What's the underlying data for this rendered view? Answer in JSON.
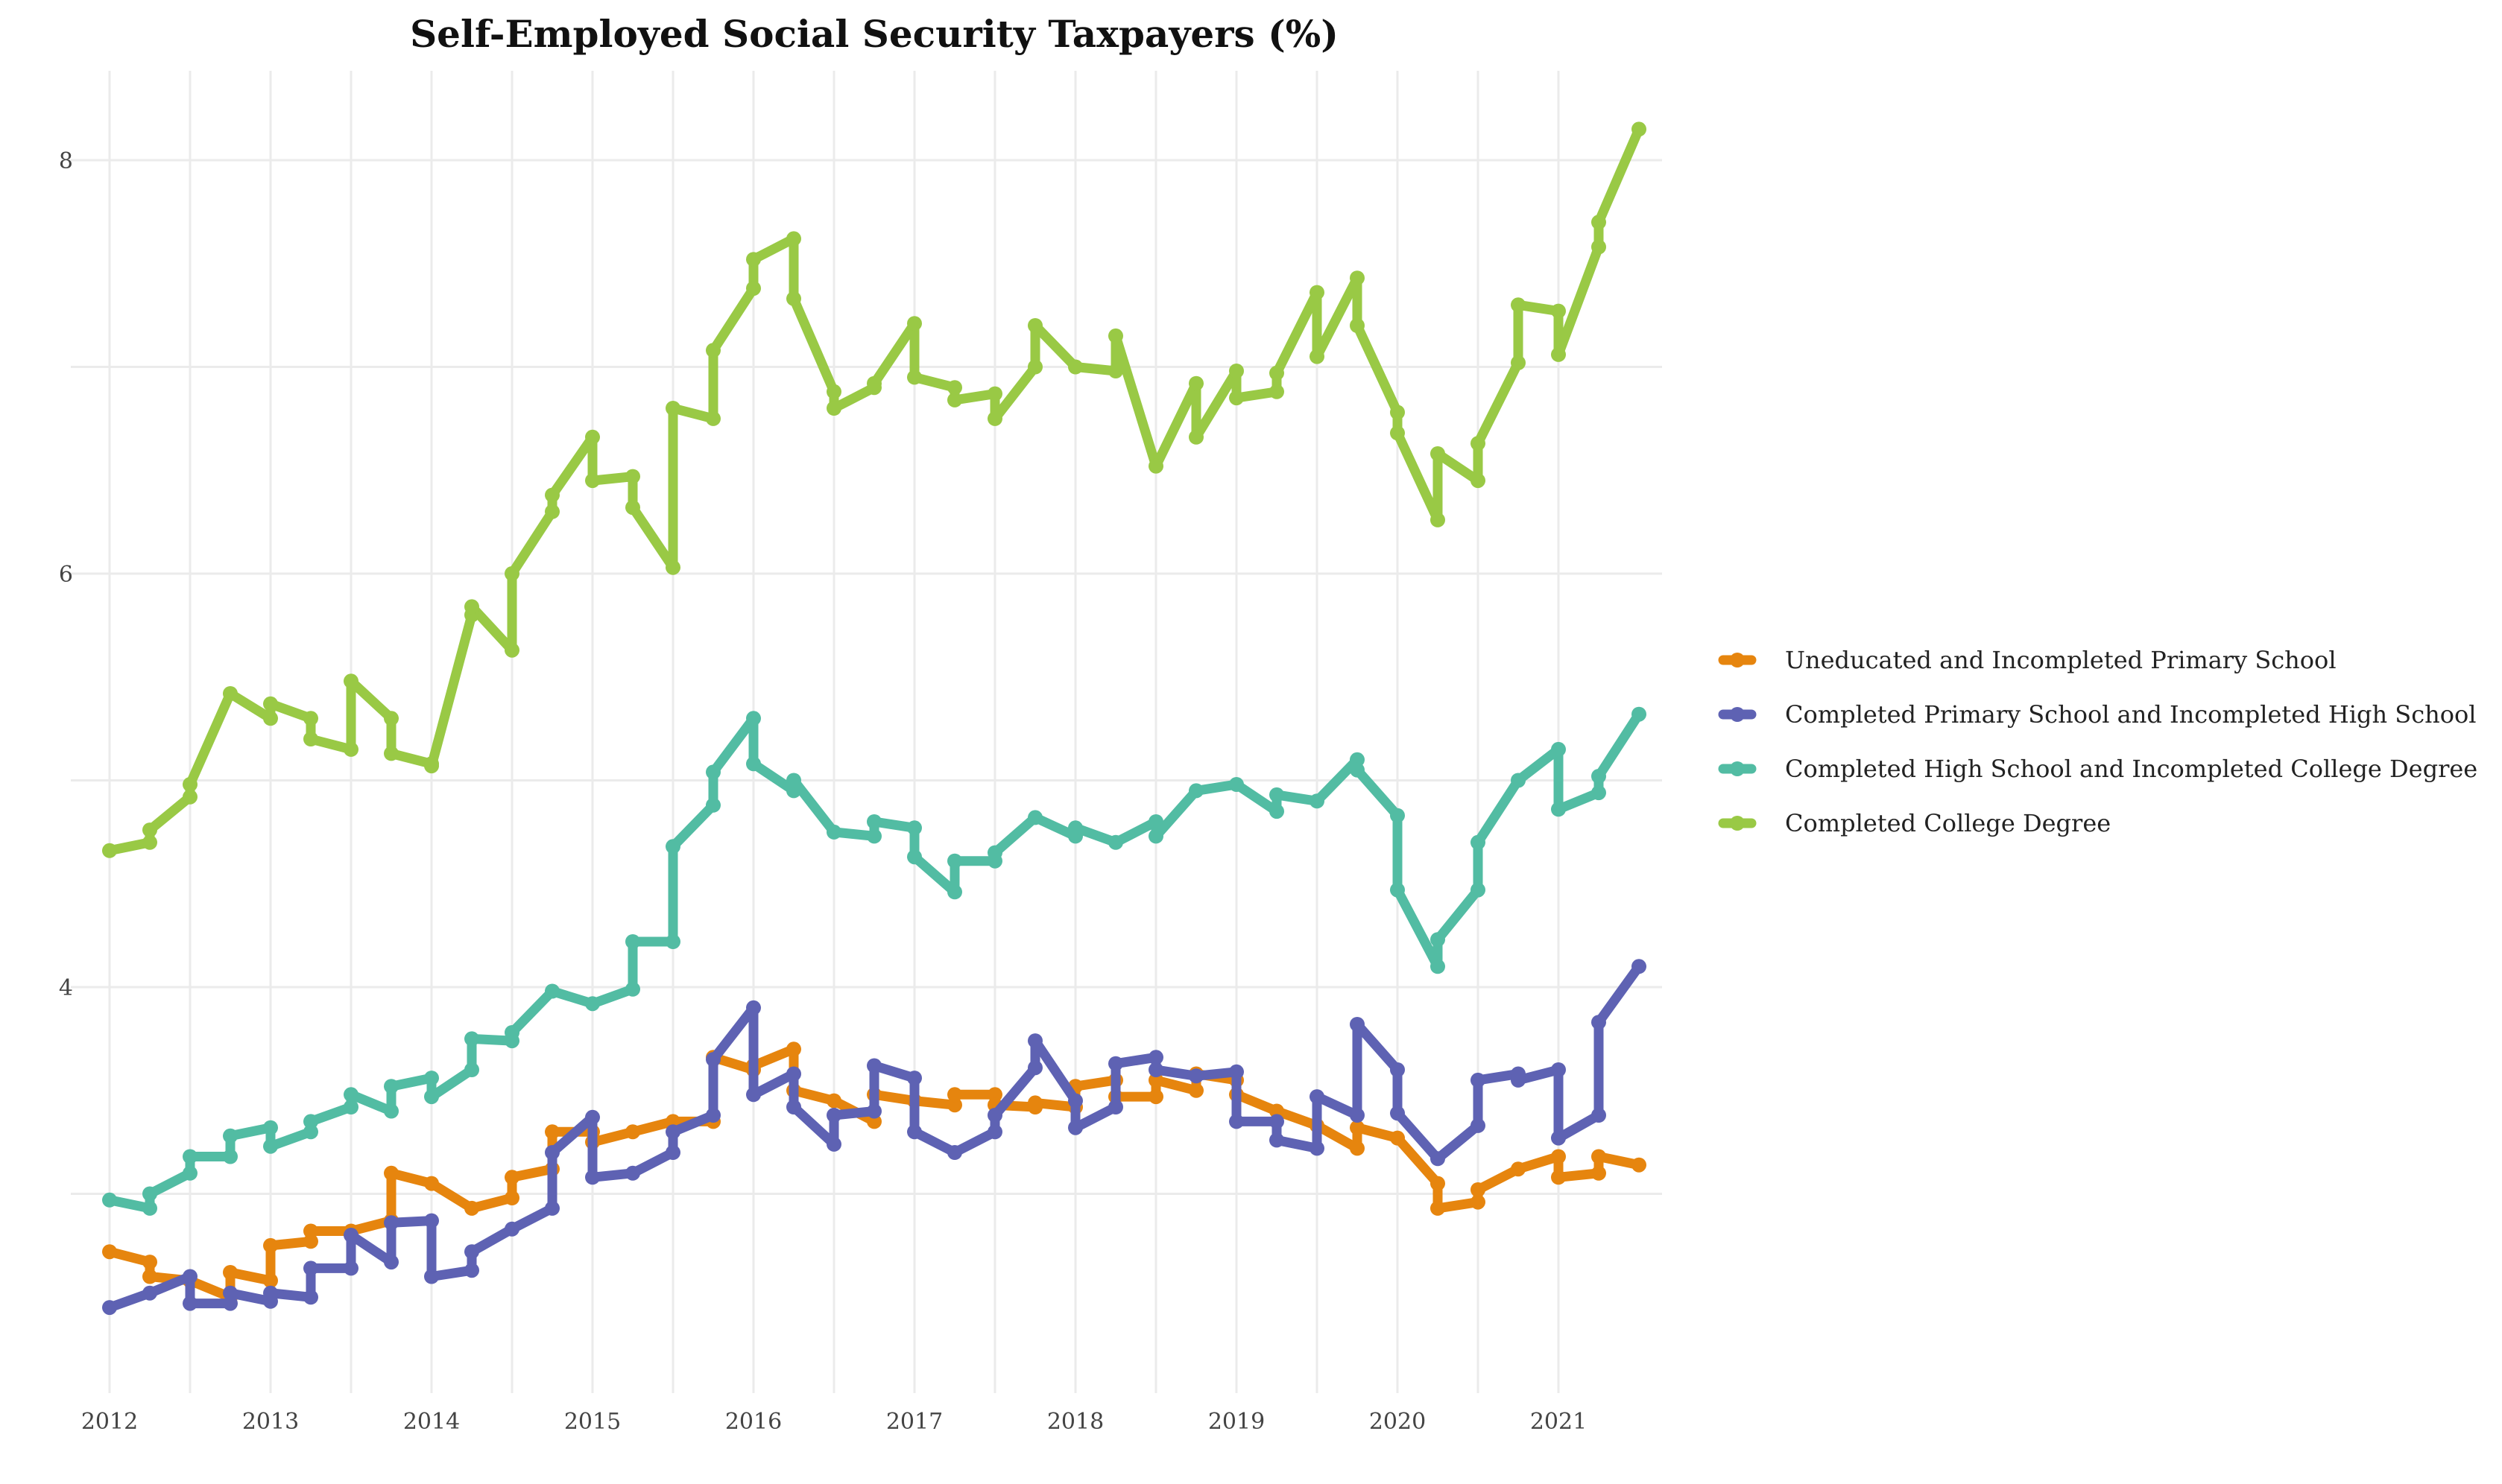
{
  "chart_data": {
    "type": "line",
    "title": "Self-Employed Social Security Taxpayers (%)",
    "xlabel": "",
    "ylabel": "",
    "xlim": [
      2012,
      2021.75
    ],
    "ylim": [
      2.7,
      8.45
    ],
    "x_ticks": [
      2012,
      2013,
      2014,
      2015,
      2016,
      2017,
      2018,
      2019,
      2020,
      2021
    ],
    "y_ticks": [
      4,
      6,
      8
    ],
    "grid": true,
    "legend_position": "right",
    "series": [
      {
        "name": "Uneducated and Incompleted Primary School",
        "color": "#E6850E",
        "points": [
          [
            2012.0,
            2.72
          ],
          [
            2012.25,
            2.67
          ],
          [
            2012.25,
            2.6
          ],
          [
            2012.5,
            2.58
          ],
          [
            2012.75,
            2.5
          ],
          [
            2012.75,
            2.62
          ],
          [
            2013.0,
            2.58
          ],
          [
            2013.0,
            2.75
          ],
          [
            2013.25,
            2.77
          ],
          [
            2013.25,
            2.82
          ],
          [
            2013.5,
            2.82
          ],
          [
            2013.75,
            2.87
          ],
          [
            2013.75,
            3.1
          ],
          [
            2014.0,
            3.05
          ],
          [
            2014.25,
            2.93
          ],
          [
            2014.5,
            2.98
          ],
          [
            2014.5,
            3.08
          ],
          [
            2014.75,
            3.12
          ],
          [
            2014.75,
            3.3
          ],
          [
            2015.0,
            3.3
          ],
          [
            2015.0,
            3.25
          ],
          [
            2015.25,
            3.3
          ],
          [
            2015.5,
            3.35
          ],
          [
            2015.75,
            3.35
          ],
          [
            2015.75,
            3.66
          ],
          [
            2016.0,
            3.6
          ],
          [
            2016.0,
            3.62
          ],
          [
            2016.25,
            3.7
          ],
          [
            2016.25,
            3.5
          ],
          [
            2016.5,
            3.45
          ],
          [
            2016.75,
            3.35
          ],
          [
            2016.75,
            3.48
          ],
          [
            2017.0,
            3.45
          ],
          [
            2017.25,
            3.43
          ],
          [
            2017.25,
            3.48
          ],
          [
            2017.5,
            3.48
          ],
          [
            2017.5,
            3.43
          ],
          [
            2017.75,
            3.42
          ],
          [
            2017.75,
            3.44
          ],
          [
            2018.0,
            3.42
          ],
          [
            2018.0,
            3.52
          ],
          [
            2018.25,
            3.55
          ],
          [
            2018.25,
            3.47
          ],
          [
            2018.5,
            3.47
          ],
          [
            2018.5,
            3.55
          ],
          [
            2018.75,
            3.5
          ],
          [
            2018.75,
            3.58
          ],
          [
            2019.0,
            3.55
          ],
          [
            2019.0,
            3.48
          ],
          [
            2019.25,
            3.4
          ],
          [
            2019.5,
            3.33
          ],
          [
            2019.75,
            3.22
          ],
          [
            2019.75,
            3.32
          ],
          [
            2020.0,
            3.27
          ],
          [
            2020.25,
            3.05
          ],
          [
            2020.25,
            2.93
          ],
          [
            2020.5,
            2.96
          ],
          [
            2020.5,
            3.02
          ],
          [
            2020.75,
            3.12
          ],
          [
            2021.0,
            3.18
          ],
          [
            2021.0,
            3.08
          ],
          [
            2021.25,
            3.1
          ],
          [
            2021.25,
            3.18
          ],
          [
            2021.5,
            3.14
          ]
        ]
      },
      {
        "name": "Completed Primary School and Incompleted High School",
        "color": "#5E62B3",
        "points": [
          [
            2012.0,
            2.45
          ],
          [
            2012.25,
            2.52
          ],
          [
            2012.5,
            2.6
          ],
          [
            2012.5,
            2.47
          ],
          [
            2012.75,
            2.47
          ],
          [
            2012.75,
            2.52
          ],
          [
            2013.0,
            2.48
          ],
          [
            2013.0,
            2.52
          ],
          [
            2013.25,
            2.5
          ],
          [
            2013.25,
            2.64
          ],
          [
            2013.5,
            2.64
          ],
          [
            2013.5,
            2.8
          ],
          [
            2013.75,
            2.67
          ],
          [
            2013.75,
            2.86
          ],
          [
            2014.0,
            2.87
          ],
          [
            2014.0,
            2.6
          ],
          [
            2014.25,
            2.63
          ],
          [
            2014.25,
            2.72
          ],
          [
            2014.5,
            2.83
          ],
          [
            2014.75,
            2.93
          ],
          [
            2014.75,
            3.2
          ],
          [
            2015.0,
            3.37
          ],
          [
            2015.0,
            3.08
          ],
          [
            2015.25,
            3.1
          ],
          [
            2015.5,
            3.2
          ],
          [
            2015.5,
            3.3
          ],
          [
            2015.75,
            3.38
          ],
          [
            2015.75,
            3.65
          ],
          [
            2016.0,
            3.9
          ],
          [
            2016.0,
            3.48
          ],
          [
            2016.25,
            3.58
          ],
          [
            2016.25,
            3.42
          ],
          [
            2016.5,
            3.24
          ],
          [
            2016.5,
            3.38
          ],
          [
            2016.75,
            3.4
          ],
          [
            2016.75,
            3.62
          ],
          [
            2017.0,
            3.56
          ],
          [
            2017.0,
            3.3
          ],
          [
            2017.25,
            3.2
          ],
          [
            2017.5,
            3.3
          ],
          [
            2017.5,
            3.38
          ],
          [
            2017.75,
            3.61
          ],
          [
            2017.75,
            3.74
          ],
          [
            2018.0,
            3.45
          ],
          [
            2018.0,
            3.32
          ],
          [
            2018.25,
            3.42
          ],
          [
            2018.25,
            3.63
          ],
          [
            2018.5,
            3.66
          ],
          [
            2018.5,
            3.6
          ],
          [
            2018.75,
            3.57
          ],
          [
            2019.0,
            3.59
          ],
          [
            2019.0,
            3.35
          ],
          [
            2019.25,
            3.35
          ],
          [
            2019.25,
            3.26
          ],
          [
            2019.5,
            3.22
          ],
          [
            2019.5,
            3.47
          ],
          [
            2019.75,
            3.38
          ],
          [
            2019.75,
            3.82
          ],
          [
            2020.0,
            3.6
          ],
          [
            2020.0,
            3.39
          ],
          [
            2020.25,
            3.17
          ],
          [
            2020.5,
            3.33
          ],
          [
            2020.5,
            3.55
          ],
          [
            2020.75,
            3.58
          ],
          [
            2020.75,
            3.55
          ],
          [
            2021.0,
            3.6
          ],
          [
            2021.0,
            3.27
          ],
          [
            2021.25,
            3.38
          ],
          [
            2021.25,
            3.83
          ],
          [
            2021.5,
            4.1
          ]
        ]
      },
      {
        "name": "Completed High School and Incompleted College Degree",
        "color": "#52BCA3",
        "points": [
          [
            2012.0,
            2.97
          ],
          [
            2012.25,
            2.93
          ],
          [
            2012.25,
            3.0
          ],
          [
            2012.5,
            3.1
          ],
          [
            2012.5,
            3.18
          ],
          [
            2012.75,
            3.18
          ],
          [
            2012.75,
            3.28
          ],
          [
            2013.0,
            3.32
          ],
          [
            2013.0,
            3.23
          ],
          [
            2013.25,
            3.3
          ],
          [
            2013.25,
            3.35
          ],
          [
            2013.5,
            3.42
          ],
          [
            2013.5,
            3.48
          ],
          [
            2013.75,
            3.4
          ],
          [
            2013.75,
            3.52
          ],
          [
            2014.0,
            3.56
          ],
          [
            2014.0,
            3.47
          ],
          [
            2014.25,
            3.6
          ],
          [
            2014.25,
            3.75
          ],
          [
            2014.5,
            3.74
          ],
          [
            2014.5,
            3.78
          ],
          [
            2014.75,
            3.98
          ],
          [
            2015.0,
            3.92
          ],
          [
            2015.25,
            3.99
          ],
          [
            2015.25,
            4.22
          ],
          [
            2015.5,
            4.22
          ],
          [
            2015.5,
            4.68
          ],
          [
            2015.75,
            4.88
          ],
          [
            2015.75,
            5.04
          ],
          [
            2016.0,
            5.3
          ],
          [
            2016.0,
            5.08
          ],
          [
            2016.25,
            4.95
          ],
          [
            2016.25,
            5.0
          ],
          [
            2016.5,
            4.75
          ],
          [
            2016.75,
            4.73
          ],
          [
            2016.75,
            4.8
          ],
          [
            2017.0,
            4.77
          ],
          [
            2017.0,
            4.63
          ],
          [
            2017.25,
            4.46
          ],
          [
            2017.25,
            4.61
          ],
          [
            2017.5,
            4.61
          ],
          [
            2017.5,
            4.65
          ],
          [
            2017.75,
            4.82
          ],
          [
            2018.0,
            4.73
          ],
          [
            2018.0,
            4.77
          ],
          [
            2018.25,
            4.7
          ],
          [
            2018.5,
            4.8
          ],
          [
            2018.5,
            4.73
          ],
          [
            2018.75,
            4.95
          ],
          [
            2019.0,
            4.98
          ],
          [
            2019.25,
            4.85
          ],
          [
            2019.25,
            4.93
          ],
          [
            2019.5,
            4.9
          ],
          [
            2019.75,
            5.1
          ],
          [
            2019.75,
            5.05
          ],
          [
            2020.0,
            4.83
          ],
          [
            2020.0,
            4.47
          ],
          [
            2020.25,
            4.1
          ],
          [
            2020.25,
            4.23
          ],
          [
            2020.5,
            4.47
          ],
          [
            2020.5,
            4.7
          ],
          [
            2020.75,
            5.0
          ],
          [
            2021.0,
            5.15
          ],
          [
            2021.0,
            4.86
          ],
          [
            2021.25,
            4.94
          ],
          [
            2021.25,
            5.02
          ],
          [
            2021.5,
            5.32
          ]
        ]
      },
      {
        "name": "Completed College Degree",
        "color": "#99C945",
        "points": [
          [
            2012.0,
            4.66
          ],
          [
            2012.25,
            4.7
          ],
          [
            2012.25,
            4.76
          ],
          [
            2012.5,
            4.92
          ],
          [
            2012.5,
            4.98
          ],
          [
            2012.75,
            5.42
          ],
          [
            2013.0,
            5.3
          ],
          [
            2013.0,
            5.37
          ],
          [
            2013.25,
            5.3
          ],
          [
            2013.25,
            5.2
          ],
          [
            2013.5,
            5.15
          ],
          [
            2013.5,
            5.48
          ],
          [
            2013.75,
            5.3
          ],
          [
            2013.75,
            5.13
          ],
          [
            2014.0,
            5.08
          ],
          [
            2014.0,
            5.07
          ],
          [
            2014.25,
            5.8
          ],
          [
            2014.25,
            5.84
          ],
          [
            2014.5,
            5.63
          ],
          [
            2014.5,
            6.0
          ],
          [
            2014.75,
            6.3
          ],
          [
            2014.75,
            6.38
          ],
          [
            2015.0,
            6.66
          ],
          [
            2015.0,
            6.45
          ],
          [
            2015.25,
            6.47
          ],
          [
            2015.25,
            6.32
          ],
          [
            2015.5,
            6.03
          ],
          [
            2015.5,
            6.8
          ],
          [
            2015.75,
            6.75
          ],
          [
            2015.75,
            7.08
          ],
          [
            2016.0,
            7.38
          ],
          [
            2016.0,
            7.52
          ],
          [
            2016.25,
            7.62
          ],
          [
            2016.25,
            7.33
          ],
          [
            2016.5,
            6.88
          ],
          [
            2016.5,
            6.8
          ],
          [
            2016.75,
            6.9
          ],
          [
            2016.75,
            6.92
          ],
          [
            2017.0,
            7.21
          ],
          [
            2017.0,
            6.95
          ],
          [
            2017.25,
            6.9
          ],
          [
            2017.25,
            6.84
          ],
          [
            2017.5,
            6.87
          ],
          [
            2017.5,
            6.75
          ],
          [
            2017.75,
            7.0
          ],
          [
            2017.75,
            7.2
          ],
          [
            2018.0,
            7.0
          ],
          [
            2018.25,
            6.98
          ],
          [
            2018.25,
            7.15
          ],
          [
            2018.5,
            6.52
          ],
          [
            2018.75,
            6.92
          ],
          [
            2018.75,
            6.66
          ],
          [
            2019.0,
            6.98
          ],
          [
            2019.0,
            6.85
          ],
          [
            2019.25,
            6.88
          ],
          [
            2019.25,
            6.97
          ],
          [
            2019.5,
            7.36
          ],
          [
            2019.5,
            7.05
          ],
          [
            2019.75,
            7.43
          ],
          [
            2019.75,
            7.2
          ],
          [
            2020.0,
            6.78
          ],
          [
            2020.0,
            6.68
          ],
          [
            2020.25,
            6.26
          ],
          [
            2020.25,
            6.58
          ],
          [
            2020.5,
            6.45
          ],
          [
            2020.5,
            6.63
          ],
          [
            2020.75,
            7.02
          ],
          [
            2020.75,
            7.3
          ],
          [
            2021.0,
            7.27
          ],
          [
            2021.0,
            7.06
          ],
          [
            2021.25,
            7.58
          ],
          [
            2021.25,
            7.7
          ],
          [
            2021.5,
            8.15
          ]
        ]
      }
    ]
  }
}
